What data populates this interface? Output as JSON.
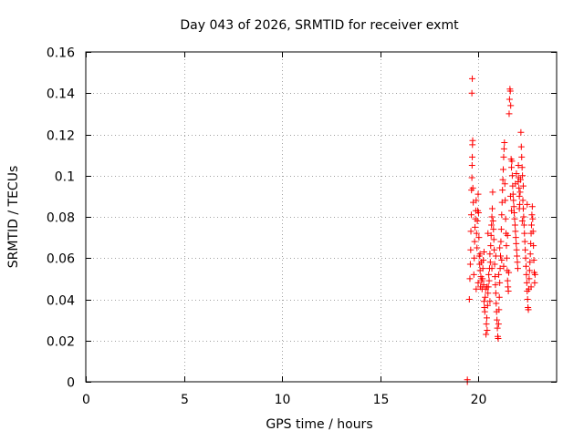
{
  "chart_data": {
    "type": "scatter",
    "title": "Day 043 of 2026, SRMTID for receiver exmt",
    "xlabel": "GPS time / hours",
    "ylabel": "SRMTID / TECUs",
    "xlim": [
      0,
      24
    ],
    "ylim": [
      0,
      0.16
    ],
    "xticks": [
      0,
      5,
      10,
      15,
      20
    ],
    "xtick_labels": [
      "0",
      "5",
      "10",
      "15",
      "20"
    ],
    "yticks": [
      0,
      0.02,
      0.04,
      0.06,
      0.08,
      0.1,
      0.12,
      0.14,
      0.16
    ],
    "ytick_labels": [
      "0",
      "0.02",
      "0.04",
      "0.06",
      "0.08",
      "0.1",
      "0.12",
      "0.14",
      "0.16"
    ],
    "grid": true,
    "marker": "+",
    "series": [
      {
        "name": "SRMTID",
        "color": "#ff0000",
        "points": [
          [
            19.45,
            0.0
          ],
          [
            19.45,
            0.001
          ],
          [
            19.55,
            0.04
          ],
          [
            19.58,
            0.05
          ],
          [
            19.6,
            0.057
          ],
          [
            19.62,
            0.064
          ],
          [
            19.63,
            0.073
          ],
          [
            19.65,
            0.081
          ],
          [
            19.66,
            0.093
          ],
          [
            19.68,
            0.099
          ],
          [
            19.69,
            0.105
          ],
          [
            19.7,
            0.109
          ],
          [
            19.71,
            0.115
          ],
          [
            19.72,
            0.117
          ],
          [
            19.68,
            0.14
          ],
          [
            19.7,
            0.147
          ],
          [
            19.73,
            0.094
          ],
          [
            19.75,
            0.087
          ],
          [
            19.78,
            0.052
          ],
          [
            19.8,
            0.06
          ],
          [
            19.82,
            0.068
          ],
          [
            19.84,
            0.075
          ],
          [
            19.86,
            0.079
          ],
          [
            19.88,
            0.083
          ],
          [
            19.9,
            0.088
          ],
          [
            19.92,
            0.072
          ],
          [
            19.94,
            0.065
          ],
          [
            19.96,
            0.078
          ],
          [
            19.98,
            0.083
          ],
          [
            20.0,
            0.091
          ],
          [
            20.02,
            0.082
          ],
          [
            20.04,
            0.07
          ],
          [
            20.06,
            0.061
          ],
          [
            20.08,
            0.057
          ],
          [
            20.1,
            0.054
          ],
          [
            20.12,
            0.046
          ],
          [
            20.14,
            0.051
          ],
          [
            20.16,
            0.058
          ],
          [
            20.18,
            0.049
          ],
          [
            20.2,
            0.045
          ],
          [
            20.22,
            0.05
          ],
          [
            20.24,
            0.055
          ],
          [
            20.26,
            0.059
          ],
          [
            20.28,
            0.047
          ],
          [
            20.3,
            0.039
          ],
          [
            20.32,
            0.036
          ],
          [
            20.34,
            0.034
          ],
          [
            20.36,
            0.041
          ],
          [
            20.38,
            0.045
          ],
          [
            20.4,
            0.023
          ],
          [
            20.42,
            0.028
          ],
          [
            20.44,
            0.031
          ],
          [
            20.46,
            0.025
          ],
          [
            20.48,
            0.037
          ],
          [
            20.5,
            0.043
          ],
          [
            20.52,
            0.046
          ],
          [
            20.54,
            0.052
          ],
          [
            20.56,
            0.049
          ],
          [
            20.58,
            0.055
          ],
          [
            20.6,
            0.062
          ],
          [
            20.62,
            0.058
          ],
          [
            20.64,
            0.066
          ],
          [
            20.66,
            0.071
          ],
          [
            20.68,
            0.076
          ],
          [
            20.7,
            0.08
          ],
          [
            20.72,
            0.084
          ],
          [
            20.74,
            0.092
          ],
          [
            20.76,
            0.078
          ],
          [
            20.78,
            0.074
          ],
          [
            20.8,
            0.069
          ],
          [
            20.82,
            0.064
          ],
          [
            20.84,
            0.057
          ],
          [
            20.86,
            0.051
          ],
          [
            20.88,
            0.047
          ],
          [
            20.9,
            0.043
          ],
          [
            20.92,
            0.038
          ],
          [
            20.94,
            0.034
          ],
          [
            20.96,
            0.03
          ],
          [
            20.98,
            0.026
          ],
          [
            21.0,
            0.022
          ],
          [
            21.02,
            0.021
          ],
          [
            21.04,
            0.028
          ],
          [
            21.06,
            0.035
          ],
          [
            21.08,
            0.041
          ],
          [
            21.1,
            0.048
          ],
          [
            21.12,
            0.055
          ],
          [
            21.14,
            0.061
          ],
          [
            21.16,
            0.068
          ],
          [
            21.18,
            0.074
          ],
          [
            21.2,
            0.081
          ],
          [
            21.22,
            0.087
          ],
          [
            21.24,
            0.093
          ],
          [
            21.26,
            0.098
          ],
          [
            21.28,
            0.103
          ],
          [
            21.3,
            0.109
          ],
          [
            21.32,
            0.113
          ],
          [
            21.34,
            0.116
          ],
          [
            21.36,
            0.096
          ],
          [
            21.38,
            0.088
          ],
          [
            21.4,
            0.079
          ],
          [
            21.42,
            0.072
          ],
          [
            21.44,
            0.066
          ],
          [
            21.46,
            0.06
          ],
          [
            21.48,
            0.054
          ],
          [
            21.5,
            0.049
          ],
          [
            21.52,
            0.046
          ],
          [
            21.54,
            0.044
          ],
          [
            21.56,
            0.053
          ],
          [
            21.58,
            0.13
          ],
          [
            21.6,
            0.137
          ],
          [
            21.62,
            0.142
          ],
          [
            21.64,
            0.141
          ],
          [
            21.66,
            0.134
          ],
          [
            21.68,
            0.108
          ],
          [
            21.7,
            0.104
          ],
          [
            21.72,
            0.107
          ],
          [
            21.74,
            0.1
          ],
          [
            21.76,
            0.095
          ],
          [
            21.78,
            0.091
          ],
          [
            21.8,
            0.088
          ],
          [
            21.82,
            0.085
          ],
          [
            21.84,
            0.082
          ],
          [
            21.86,
            0.079
          ],
          [
            21.88,
            0.076
          ],
          [
            21.9,
            0.073
          ],
          [
            21.92,
            0.07
          ],
          [
            21.94,
            0.067
          ],
          [
            21.96,
            0.064
          ],
          [
            21.98,
            0.061
          ],
          [
            22.0,
            0.058
          ],
          [
            22.02,
            0.055
          ],
          [
            22.04,
            0.097
          ],
          [
            22.06,
            0.099
          ],
          [
            22.08,
            0.094
          ],
          [
            22.1,
            0.09
          ],
          [
            22.12,
            0.086
          ],
          [
            22.14,
            0.092
          ],
          [
            22.16,
            0.098
          ],
          [
            22.18,
            0.121
          ],
          [
            22.2,
            0.114
          ],
          [
            22.22,
            0.109
          ],
          [
            22.24,
            0.104
          ],
          [
            22.26,
            0.1
          ],
          [
            22.28,
            0.088
          ],
          [
            22.3,
            0.084
          ],
          [
            22.32,
            0.08
          ],
          [
            22.34,
            0.076
          ],
          [
            22.36,
            0.072
          ],
          [
            22.38,
            0.068
          ],
          [
            22.4,
            0.064
          ],
          [
            22.42,
            0.06
          ],
          [
            22.44,
            0.056
          ],
          [
            22.46,
            0.052
          ],
          [
            22.48,
            0.048
          ],
          [
            22.5,
            0.044
          ],
          [
            22.52,
            0.04
          ],
          [
            22.54,
            0.036
          ],
          [
            22.56,
            0.035
          ],
          [
            22.58,
            0.045
          ],
          [
            22.6,
            0.05
          ],
          [
            22.62,
            0.054
          ],
          [
            22.64,
            0.058
          ],
          [
            22.66,
            0.062
          ],
          [
            22.68,
            0.067
          ],
          [
            22.7,
            0.072
          ],
          [
            22.72,
            0.076
          ],
          [
            22.74,
            0.081
          ],
          [
            22.76,
            0.085
          ],
          [
            22.78,
            0.079
          ],
          [
            22.8,
            0.073
          ],
          [
            22.82,
            0.066
          ],
          [
            22.84,
            0.059
          ],
          [
            22.86,
            0.053
          ],
          [
            22.88,
            0.048
          ],
          [
            22.9,
            0.052
          ],
          [
            19.9,
            0.045
          ],
          [
            20.0,
            0.048
          ],
          [
            20.1,
            0.062
          ],
          [
            20.3,
            0.063
          ],
          [
            20.5,
            0.072
          ],
          [
            20.7,
            0.055
          ],
          [
            20.9,
            0.061
          ],
          [
            21.1,
            0.065
          ],
          [
            21.3,
            0.056
          ],
          [
            21.5,
            0.071
          ],
          [
            21.7,
            0.083
          ],
          [
            21.9,
            0.096
          ],
          [
            22.1,
            0.084
          ],
          [
            22.3,
            0.095
          ],
          [
            22.5,
            0.086
          ],
          [
            22.7,
            0.046
          ],
          [
            21.2,
            0.059
          ],
          [
            20.6,
            0.039
          ],
          [
            20.45,
            0.046
          ],
          [
            21.05,
            0.052
          ],
          [
            21.65,
            0.09
          ],
          [
            22.25,
            0.078
          ],
          [
            21.95,
            0.101
          ],
          [
            22.05,
            0.105
          ]
        ]
      }
    ]
  }
}
